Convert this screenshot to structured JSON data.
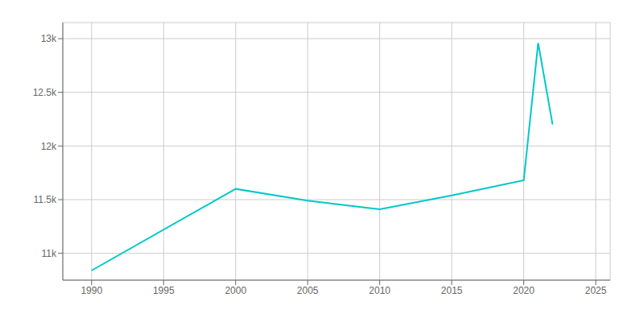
{
  "chart_data": {
    "type": "line",
    "x": [
      1990,
      2000,
      2005,
      2010,
      2015,
      2020,
      2021,
      2022
    ],
    "values": [
      10840,
      11600,
      11490,
      11410,
      11540,
      11680,
      12960,
      12200
    ],
    "color": "#00c8c8",
    "xlim": [
      1988,
      2026
    ],
    "ylim": [
      10750,
      13150
    ],
    "xticks": [
      1990,
      1995,
      2000,
      2005,
      2010,
      2015,
      2020,
      2025
    ],
    "yticks": [
      {
        "value": 11000,
        "label": "11k"
      },
      {
        "value": 11500,
        "label": "11.5k"
      },
      {
        "value": 12000,
        "label": "12k"
      },
      {
        "value": 12500,
        "label": "12.5k"
      },
      {
        "value": 13000,
        "label": "13k"
      }
    ],
    "grid": true
  }
}
